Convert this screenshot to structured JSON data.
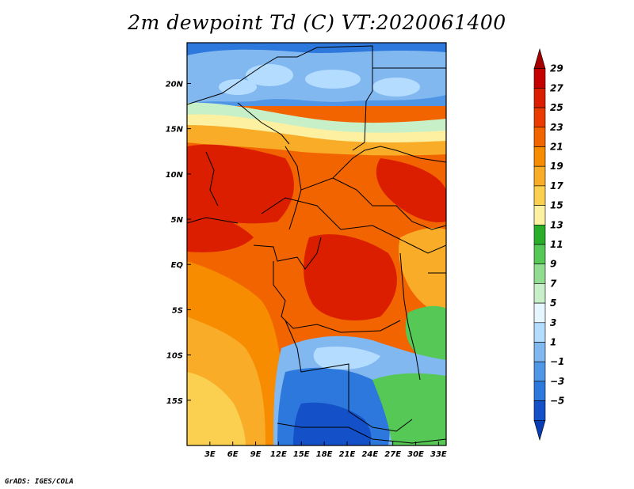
{
  "title": "2m dewpoint Td (C) VT:2020061400",
  "credit": "GrADS: IGES/COLA",
  "map": {
    "lon_range": [
      0,
      34
    ],
    "lat_range": [
      -20,
      24.5
    ],
    "lon_ticks": [
      {
        "lon": 3,
        "label": "3E"
      },
      {
        "lon": 6,
        "label": "6E"
      },
      {
        "lon": 9,
        "label": "9E"
      },
      {
        "lon": 12,
        "label": "12E"
      },
      {
        "lon": 15,
        "label": "15E"
      },
      {
        "lon": 18,
        "label": "18E"
      },
      {
        "lon": 21,
        "label": "21E"
      },
      {
        "lon": 24,
        "label": "24E"
      },
      {
        "lon": 27,
        "label": "27E"
      },
      {
        "lon": 30,
        "label": "30E"
      },
      {
        "lon": 33,
        "label": "33E"
      }
    ],
    "lat_ticks": [
      {
        "lat": 20,
        "label": "20N"
      },
      {
        "lat": 15,
        "label": "15N"
      },
      {
        "lat": 10,
        "label": "10N"
      },
      {
        "lat": 5,
        "label": "5N"
      },
      {
        "lat": 0,
        "label": "EQ"
      },
      {
        "lat": -5,
        "label": "5S"
      },
      {
        "lat": -10,
        "label": "10S"
      },
      {
        "lat": -15,
        "label": "15S"
      }
    ]
  },
  "colorbar": {
    "labels": [
      "29",
      "27",
      "25",
      "23",
      "21",
      "19",
      "17",
      "15",
      "13",
      "11",
      "9",
      "7",
      "5",
      "3",
      "1",
      "−1",
      "−3",
      "−5"
    ],
    "colors": [
      "#a50000",
      "#c50000",
      "#dc1e00",
      "#ea3c00",
      "#f26400",
      "#f78c00",
      "#f8ac28",
      "#fbd050",
      "#fdf0a0",
      "#2aae2a",
      "#56c856",
      "#92dc92",
      "#c8f0c8",
      "#e6f6ff",
      "#b4dcff",
      "#82b8f0",
      "#5096e6",
      "#2d78dc",
      "#1450c8",
      "#0a3cb4"
    ]
  }
}
